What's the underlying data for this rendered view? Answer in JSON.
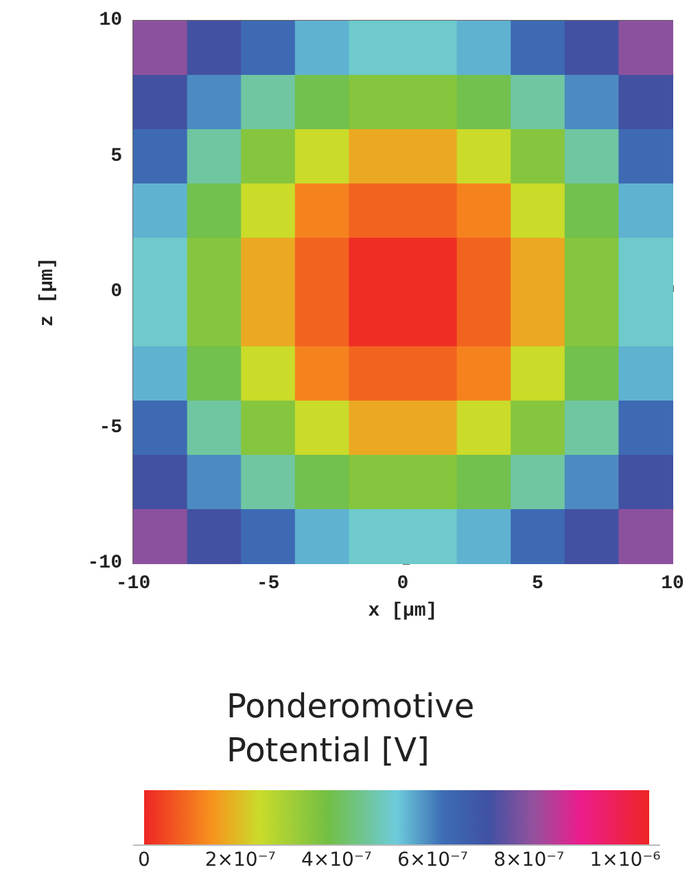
{
  "chart_data": {
    "type": "heatmap",
    "xlabel": "x [μm]",
    "ylabel": "z [μm]",
    "clabel": "Ponderomotive Potential [V]",
    "x": [
      -9,
      -7,
      -5,
      -3,
      -1,
      1,
      3,
      5,
      7,
      9
    ],
    "y": [
      9,
      7,
      5,
      3,
      1,
      -1,
      -3,
      -5,
      -7,
      -9
    ],
    "xlim": [
      -10,
      10
    ],
    "ylim": [
      -10,
      10
    ],
    "xticks": [
      -10,
      -5,
      0,
      5,
      10
    ],
    "yticks": [
      -10,
      -5,
      0,
      5,
      10
    ],
    "clim": [
      0,
      1.05e-06
    ],
    "cticks": [
      {
        "value": 0,
        "label": "0"
      },
      {
        "value": 2e-07,
        "label": "2×10⁻⁷"
      },
      {
        "value": 4e-07,
        "label": "4×10⁻⁷"
      },
      {
        "value": 6e-07,
        "label": "6×10⁻⁷"
      },
      {
        "value": 8e-07,
        "label": "8×10⁻⁷"
      },
      {
        "value": 1e-06,
        "label": "1×10⁻⁶"
      }
    ],
    "cells": [
      [
        8e-07,
        7.2e-07,
        6.3e-07,
        5.5e-07,
        5.1e-07,
        5.1e-07,
        5.5e-07,
        6.3e-07,
        7.2e-07,
        8e-07
      ],
      [
        7.2e-07,
        5.9e-07,
        4.7e-07,
        3.9e-07,
        3.5e-07,
        3.5e-07,
        3.9e-07,
        4.7e-07,
        5.9e-07,
        7.2e-07
      ],
      [
        6.3e-07,
        4.7e-07,
        3.5e-07,
        2.4e-07,
        1.7e-07,
        1.7e-07,
        2.4e-07,
        3.5e-07,
        4.7e-07,
        6.3e-07
      ],
      [
        5.5e-07,
        3.9e-07,
        2.4e-07,
        1.2e-07,
        8e-08,
        8e-08,
        1.2e-07,
        2.4e-07,
        3.9e-07,
        5.5e-07
      ],
      [
        5.1e-07,
        3.5e-07,
        1.7e-07,
        8e-08,
        1e-08,
        1e-08,
        8e-08,
        1.7e-07,
        3.5e-07,
        5.1e-07
      ],
      [
        5.1e-07,
        3.5e-07,
        1.7e-07,
        8e-08,
        1e-08,
        1e-08,
        8e-08,
        1.7e-07,
        3.5e-07,
        5.1e-07
      ],
      [
        5.5e-07,
        3.9e-07,
        2.4e-07,
        1.2e-07,
        8e-08,
        8e-08,
        1.2e-07,
        2.4e-07,
        3.9e-07,
        5.5e-07
      ],
      [
        6.3e-07,
        4.7e-07,
        3.5e-07,
        2.4e-07,
        1.7e-07,
        1.7e-07,
        2.4e-07,
        3.5e-07,
        4.7e-07,
        6.3e-07
      ],
      [
        7.2e-07,
        5.9e-07,
        4.7e-07,
        3.9e-07,
        3.5e-07,
        3.5e-07,
        3.9e-07,
        4.7e-07,
        5.9e-07,
        7.2e-07
      ],
      [
        8e-07,
        7.2e-07,
        6.3e-07,
        5.5e-07,
        5.1e-07,
        5.1e-07,
        5.5e-07,
        6.3e-07,
        7.2e-07,
        8e-07
      ]
    ]
  }
}
